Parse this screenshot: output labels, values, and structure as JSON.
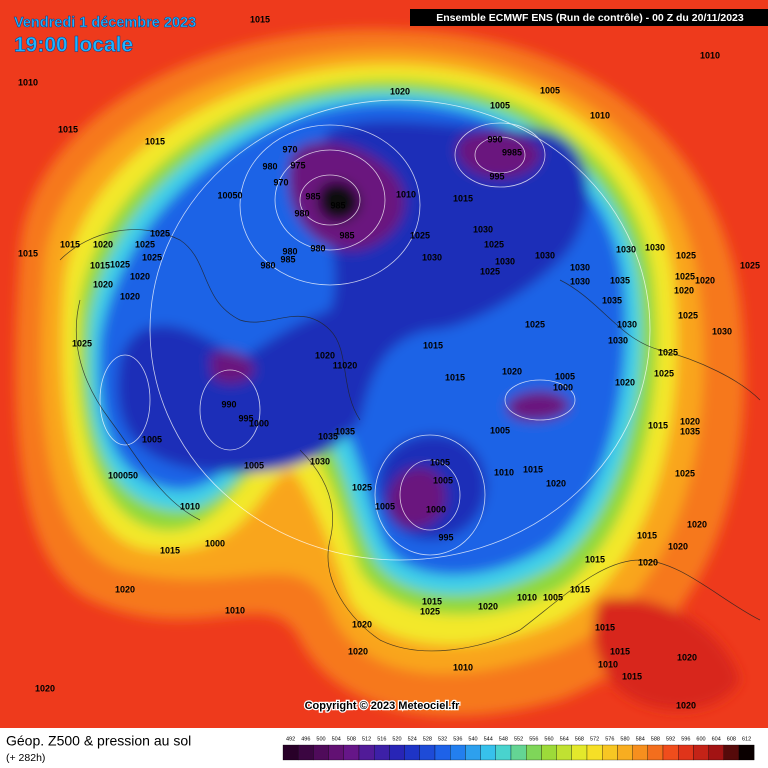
{
  "header": {
    "date": "Vendredi 1 décembre 2023",
    "time": "19:00 locale",
    "run": "Ensemble ECMWF ENS  (Run de contrôle)  -  00 Z du 20/11/2023"
  },
  "footer": {
    "title": "Géop. Z500 & pression au sol",
    "lead": "(+ 282h)",
    "copyright": "Copyright © 2023 Meteociel.fr"
  },
  "colorbar": [
    492,
    496,
    500,
    504,
    508,
    512,
    516,
    520,
    524,
    528,
    532,
    536,
    540,
    544,
    548,
    552,
    556,
    560,
    564,
    568,
    572,
    576,
    580,
    584,
    588,
    592,
    596,
    600,
    604,
    608,
    612
  ],
  "pressure_labels": [
    "1015",
    "1010",
    "1010",
    "1015",
    "1015",
    "1020",
    "1005",
    "1005",
    "1010",
    "990",
    "9985",
    "995",
    "970",
    "975",
    "980",
    "970",
    "10050",
    "985",
    "985",
    "980",
    "985",
    "1010",
    "1015",
    "1025",
    "980",
    "980",
    "980",
    "985",
    "1025",
    "1025",
    "1015",
    "1020",
    "1015",
    "1025",
    "1025",
    "1015",
    "1020",
    "1020",
    "1020",
    "1025",
    "1030",
    "1030",
    "1025",
    "1030",
    "1025",
    "1030",
    "1030",
    "1030",
    "1035",
    "1030",
    "1030",
    "1025",
    "1025",
    "1025",
    "1020",
    "1020",
    "1035",
    "1025",
    "1030",
    "1030",
    "1025",
    "1030",
    "1015",
    "1020",
    "11020",
    "1015",
    "1020",
    "1005",
    "1000",
    "1020",
    "1025",
    "1025",
    "990",
    "995",
    "1000",
    "1005",
    "1020",
    "1035",
    "1015",
    "1005",
    "1035",
    "1035",
    "1030",
    "1005",
    "1005",
    "1005",
    "1010",
    "1015",
    "1025",
    "100050",
    "1025",
    "1020",
    "1005",
    "1000",
    "1010",
    "995",
    "1000",
    "1015",
    "1015",
    "1020",
    "1020",
    "1020",
    "1015",
    "1020",
    "1015",
    "1020",
    "1010",
    "1005",
    "1015",
    "1025",
    "1010",
    "1015",
    "1020",
    "1020",
    "1015",
    "1020",
    "1010",
    "1010",
    "1015",
    "1020",
    "1020"
  ]
}
